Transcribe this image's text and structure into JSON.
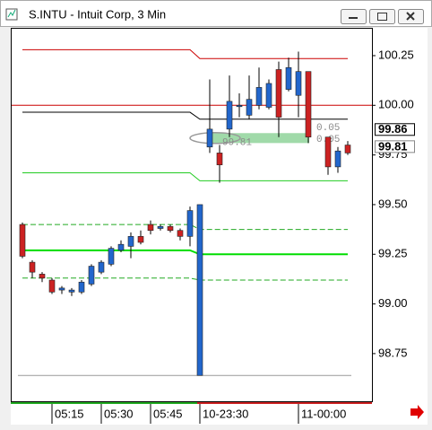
{
  "window_title": "S.INTU - Intuit Corp, 3 Min",
  "chart_data": {
    "type": "candlestick",
    "categories": [
      null,
      null,
      null,
      "05:15",
      null,
      null,
      null,
      null,
      "05:30",
      null,
      null,
      null,
      null,
      "05:45",
      null,
      null,
      null,
      null,
      "10-23:30",
      null,
      null,
      null,
      null,
      null,
      null,
      null,
      null,
      null,
      "11-00:00",
      null,
      null,
      null,
      null,
      null
    ],
    "open": [
      99.4,
      99.21,
      99.15,
      99.12,
      99.07,
      99.06,
      99.06,
      99.1,
      99.16,
      99.2,
      99.27,
      99.29,
      99.34,
      99.4,
      99.38,
      99.39,
      99.37,
      99.34,
      98.64,
      99.79,
      99.76,
      99.88,
      100.0,
      99.95,
      100.0,
      99.99,
      100.18,
      100.08,
      100.05,
      100.17,
      null,
      99.84,
      99.69,
      99.8
    ],
    "high": [
      99.41,
      99.22,
      99.16,
      99.13,
      99.09,
      99.08,
      99.12,
      99.2,
      99.22,
      99.29,
      99.32,
      99.36,
      99.37,
      99.42,
      99.4,
      99.4,
      99.38,
      99.49,
      99.5,
      100.13,
      99.8,
      100.15,
      100.06,
      100.15,
      100.19,
      100.13,
      100.22,
      100.24,
      100.27,
      100.17,
      null,
      99.84,
      99.79,
      99.82
    ],
    "low": [
      99.23,
      99.13,
      99.11,
      99.05,
      99.05,
      99.04,
      99.05,
      99.09,
      99.15,
      99.19,
      99.26,
      99.23,
      99.3,
      99.35,
      99.37,
      99.36,
      99.32,
      99.29,
      98.64,
      99.76,
      99.61,
      99.84,
      99.94,
      99.93,
      99.98,
      99.98,
      99.84,
      100.07,
      99.94,
      99.81,
      null,
      99.65,
      99.66,
      99.75
    ],
    "close": [
      99.24,
      99.16,
      99.13,
      99.06,
      99.08,
      99.07,
      99.11,
      99.19,
      99.21,
      99.28,
      99.3,
      99.34,
      99.31,
      99.37,
      99.39,
      99.37,
      99.34,
      99.47,
      99.5,
      99.88,
      99.7,
      100.02,
      100.0,
      100.03,
      100.09,
      100.11,
      99.94,
      100.19,
      100.17,
      99.84,
      null,
      99.69,
      99.77,
      99.76
    ],
    "up_color": "#2266cc",
    "down_color": "#cc2222",
    "lines": [
      {
        "color": "#cc0000",
        "dashed": false,
        "values": [
          100.28,
          100.28,
          100.28,
          100.28,
          100.28,
          100.28,
          100.28,
          100.28,
          100.28,
          100.28,
          100.28,
          100.28,
          100.28,
          100.28,
          100.28,
          100.28,
          100.28,
          100.28,
          100.235,
          100.235,
          100.235,
          100.235,
          100.235,
          100.235,
          100.235,
          100.235,
          100.235,
          100.235,
          100.235,
          100.235,
          100.235,
          100.235,
          100.235,
          100.235
        ]
      },
      {
        "color": "#000000",
        "dashed": false,
        "values": [
          99.965,
          99.965,
          99.965,
          99.965,
          99.965,
          99.965,
          99.965,
          99.965,
          99.965,
          99.965,
          99.965,
          99.965,
          99.965,
          99.965,
          99.965,
          99.965,
          99.965,
          99.965,
          99.93,
          99.93,
          99.93,
          99.93,
          99.93,
          99.93,
          99.93,
          99.93,
          99.93,
          99.93,
          99.93,
          99.93,
          99.93,
          99.93,
          99.93,
          99.93
        ]
      },
      {
        "color": "#22cc22",
        "dashed": false,
        "values": [
          99.66,
          99.66,
          99.66,
          99.66,
          99.66,
          99.66,
          99.66,
          99.66,
          99.66,
          99.66,
          99.66,
          99.66,
          99.66,
          99.66,
          99.66,
          99.66,
          99.66,
          99.66,
          99.62,
          99.62,
          99.62,
          99.62,
          99.62,
          99.62,
          99.62,
          99.62,
          99.62,
          99.62,
          99.62,
          99.62,
          99.62,
          99.62,
          99.62,
          99.62
        ]
      },
      {
        "color": "#22aa22",
        "dashed": true,
        "values": [
          99.4,
          99.4,
          99.4,
          99.4,
          99.4,
          99.4,
          99.4,
          99.4,
          99.4,
          99.4,
          99.4,
          99.4,
          99.4,
          99.4,
          99.4,
          99.4,
          99.4,
          99.4,
          99.375,
          99.375,
          99.375,
          99.375,
          99.375,
          99.375,
          99.375,
          99.375,
          99.375,
          99.375,
          99.375,
          99.375,
          99.375,
          99.375,
          99.375,
          99.375
        ]
      },
      {
        "color": "#00dd00",
        "dashed": false,
        "values": [
          99.27,
          99.27,
          99.27,
          99.27,
          99.27,
          99.27,
          99.27,
          99.27,
          99.27,
          99.27,
          99.27,
          99.27,
          99.27,
          99.27,
          99.27,
          99.27,
          99.27,
          99.27,
          99.25,
          99.25,
          99.25,
          99.25,
          99.25,
          99.25,
          99.25,
          99.25,
          99.25,
          99.25,
          99.25,
          99.25,
          99.25,
          99.25,
          99.25,
          99.25
        ]
      },
      {
        "color": "#22aa22",
        "dashed": true,
        "values": [
          99.13,
          99.13,
          99.13,
          99.13,
          99.13,
          99.13,
          99.13,
          99.13,
          99.13,
          99.13,
          99.13,
          99.13,
          99.13,
          99.13,
          99.13,
          99.13,
          99.13,
          99.13,
          99.12,
          99.12,
          99.12,
          99.12,
          99.12,
          99.12,
          99.12,
          99.12,
          99.12,
          99.12,
          99.12,
          99.12,
          99.12,
          99.12,
          99.12,
          99.12
        ]
      }
    ],
    "hlines": [
      {
        "value": 100.0,
        "color": "#cc0000"
      },
      {
        "value": 98.64,
        "color": "#999999"
      }
    ],
    "price_labels": [
      99.86,
      99.81
    ],
    "order_marker": {
      "price": 99.81,
      "top": 99.86,
      "label": "99.81",
      "tags": [
        "0.05",
        "0.05"
      ]
    },
    "ylim": [
      98.51,
      100.39
    ],
    "yticks": [
      98.75,
      {
        "value": 99.0,
        "label": "99.00"
      },
      99.25,
      {
        "value": 99.5,
        "label": "99.50"
      },
      99.75,
      {
        "value": 100.0,
        "label": "100.00"
      },
      100.25
    ]
  }
}
